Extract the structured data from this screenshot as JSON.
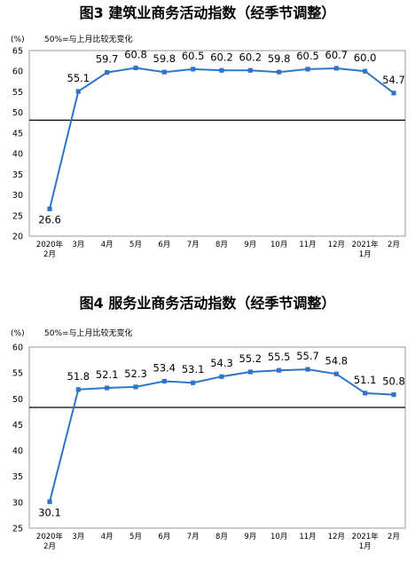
{
  "chart_data": [
    {
      "type": "line",
      "title": "图3  建筑业商务活动指数（经季节调整）",
      "unit_label": "(%)",
      "note": "50%=与上月比较无变化",
      "categories": [
        [
          "2020年",
          "2月"
        ],
        [
          "3月"
        ],
        [
          "4月"
        ],
        [
          "5月"
        ],
        [
          "6月"
        ],
        [
          "7月"
        ],
        [
          "8月"
        ],
        [
          "9月"
        ],
        [
          "10月"
        ],
        [
          "11月"
        ],
        [
          "12月"
        ],
        [
          "2021年",
          "1月"
        ],
        [
          "2月"
        ]
      ],
      "values": [
        26.6,
        55.1,
        59.7,
        60.8,
        59.8,
        60.5,
        60.2,
        60.2,
        59.8,
        60.5,
        60.7,
        60.0,
        54.7
      ],
      "data_labels": [
        "26.6",
        "55.1",
        "59.7",
        "60.8",
        "59.8",
        "60.5",
        "60.2",
        "60.2",
        "59.8",
        "60.5",
        "60.7",
        "60.0",
        "54.7"
      ],
      "yticks": [
        "20",
        "25",
        "30",
        "35",
        "40",
        "45",
        "50",
        "55",
        "60",
        "65"
      ],
      "ylim": [
        20,
        65
      ],
      "grid": false,
      "line_color": "#2E75C9"
    },
    {
      "type": "line",
      "title": "图4  服务业商务活动指数（经季节调整）",
      "unit_label": "(%)",
      "note": "50%=与上月比较无变化",
      "categories": [
        [
          "2020年",
          "2月"
        ],
        [
          "3月"
        ],
        [
          "4月"
        ],
        [
          "5月"
        ],
        [
          "6月"
        ],
        [
          "7月"
        ],
        [
          "8月"
        ],
        [
          "9月"
        ],
        [
          "10月"
        ],
        [
          "11月"
        ],
        [
          "12月"
        ],
        [
          "2021年",
          "1月"
        ],
        [
          "2月"
        ]
      ],
      "values": [
        30.1,
        51.8,
        52.1,
        52.3,
        53.4,
        53.1,
        54.3,
        55.2,
        55.5,
        55.7,
        54.8,
        51.1,
        50.8
      ],
      "data_labels": [
        "30.1",
        "51.8",
        "52.1",
        "52.3",
        "53.4",
        "53.1",
        "54.3",
        "55.2",
        "55.5",
        "55.7",
        "54.8",
        "51.1",
        "50.8"
      ],
      "yticks": [
        "25",
        "30",
        "35",
        "40",
        "45",
        "50",
        "55",
        "60"
      ],
      "ylim": [
        25,
        60
      ],
      "grid": false,
      "line_color": "#2E75C9"
    }
  ]
}
